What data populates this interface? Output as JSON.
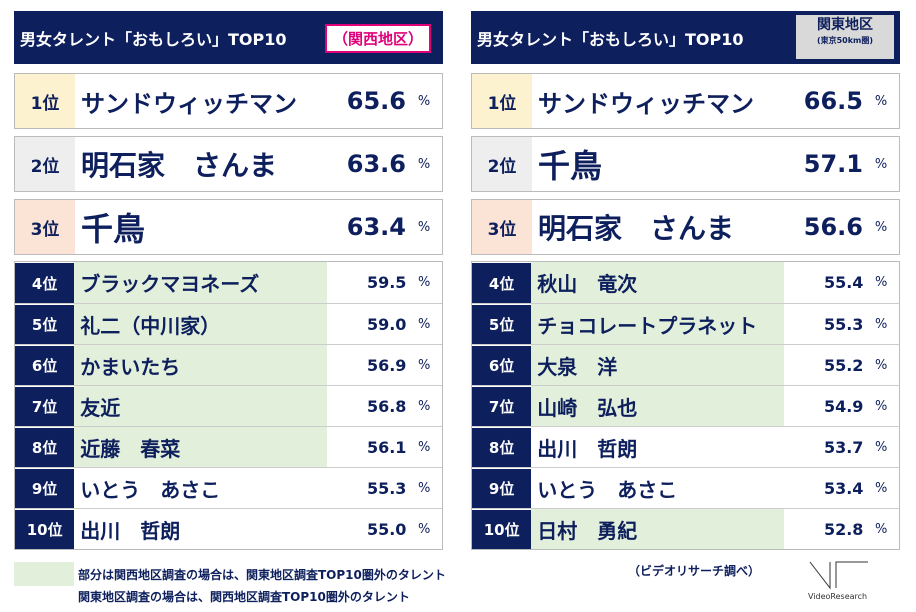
{
  "left": {
    "title": "男女タレント「おもしろい」TOP10",
    "region": "（関西地区）",
    "top": [
      {
        "rank": "1位",
        "name": "サンドウィッチマン",
        "value": "65.6",
        "color": "#fdf2d0"
      },
      {
        "rank": "2位",
        "name": "明石家　さんま",
        "value": "63.6",
        "color": "#eeeeee"
      },
      {
        "rank": "3位",
        "name": "千鳥",
        "value": "63.4",
        "color": "#fbe3d6"
      }
    ],
    "rows": [
      {
        "rank": "4位",
        "name": "ブラックマヨネーズ",
        "value": "59.5",
        "hl": true
      },
      {
        "rank": "5位",
        "name": "礼二（中川家）",
        "value": "59.0",
        "hl": true
      },
      {
        "rank": "6位",
        "name": "かまいたち",
        "value": "56.9",
        "hl": true
      },
      {
        "rank": "7位",
        "name": "友近",
        "value": "56.8",
        "hl": true
      },
      {
        "rank": "8位",
        "name": "近藤　春菜",
        "value": "56.1",
        "hl": true
      },
      {
        "rank": "9位",
        "name": "いとう　あさこ",
        "value": "55.3",
        "hl": false
      },
      {
        "rank": "10位",
        "name": "出川　哲朗",
        "value": "55.0",
        "hl": false
      }
    ]
  },
  "right": {
    "title": "男女タレント「おもしろい」TOP10",
    "region": "関東地区",
    "region_sub": "(東京50km圏)",
    "top": [
      {
        "rank": "1位",
        "name": "サンドウィッチマン",
        "value": "66.5",
        "color": "#fdf2d0"
      },
      {
        "rank": "2位",
        "name": "千鳥",
        "value": "57.1",
        "color": "#eeeeee"
      },
      {
        "rank": "3位",
        "name": "明石家　さんま",
        "value": "56.6",
        "color": "#fbe3d6"
      }
    ],
    "rows": [
      {
        "rank": "4位",
        "name": "秋山　竜次",
        "value": "55.4",
        "hl": true
      },
      {
        "rank": "5位",
        "name": "チョコレートプラネット",
        "value": "55.3",
        "hl": true
      },
      {
        "rank": "6位",
        "name": "大泉　洋",
        "value": "55.2",
        "hl": true
      },
      {
        "rank": "7位",
        "name": "山崎　弘也",
        "value": "54.9",
        "hl": true
      },
      {
        "rank": "8位",
        "name": "出川　哲朗",
        "value": "53.7",
        "hl": false
      },
      {
        "rank": "9位",
        "name": "いとう　あさこ",
        "value": "53.4",
        "hl": false
      },
      {
        "rank": "10位",
        "name": "日村　勇紀",
        "value": "52.8",
        "hl": true
      }
    ]
  },
  "pct": "%",
  "notes": {
    "line1": "部分は関西地区調査の場合は、関東地区調査TOP10圏外のタレント",
    "line2": "関東地区調査の場合は、関西地区調査TOP10圏外のタレント",
    "source": "（ビデオリサーチ調べ）",
    "logo": "VideoResearch"
  }
}
